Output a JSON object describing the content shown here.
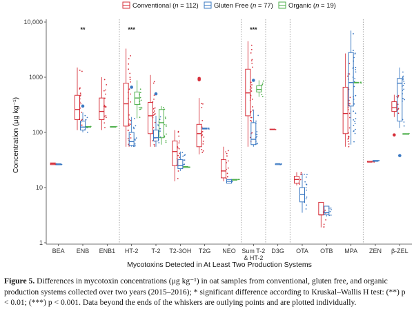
{
  "chart_data": {
    "type": "box",
    "xlabel": "Mycotoxins Detected in At Least Two Production Systems",
    "ylabel": "Concentration (μg kg⁻¹)",
    "yscale": "log10",
    "ylim": [
      1,
      10000
    ],
    "yticks": [
      1,
      10,
      100,
      1000,
      10000
    ],
    "ytick_labels": [
      "1",
      "10",
      "100",
      "1000",
      "10,000"
    ],
    "categories": [
      "BEA",
      "ENB",
      "ENB1",
      "HT-2",
      "T-2",
      "T2-3OH",
      "T2G",
      "NEO",
      "Sum T-2 & HT-2",
      "D3G",
      "OTA",
      "OTB",
      "MPA",
      "ZEN",
      "β-ZEL"
    ],
    "category_labels": [
      [
        "BEA"
      ],
      [
        "ENB"
      ],
      [
        "ENB1"
      ],
      [
        "HT-2"
      ],
      [
        "T-2"
      ],
      [
        "T2-3OH"
      ],
      [
        "T2G"
      ],
      [
        "NEO"
      ],
      [
        "Sum T-2",
        "& HT-2"
      ],
      [
        "D3G"
      ],
      [
        "OTA"
      ],
      [
        "OTB"
      ],
      [
        "MPA"
      ],
      [
        "ZEN"
      ],
      [
        "β-ZEL"
      ]
    ],
    "group_separators_after": [
      "ENB1",
      "NEO",
      "Sum T-2 & HT-2",
      "D3G",
      "MPA"
    ],
    "significance": [
      {
        "category": "ENB",
        "label": "**"
      },
      {
        "category": "HT-2",
        "label": "***"
      },
      {
        "category": "Sum T-2 & HT-2",
        "label": "***"
      }
    ],
    "legend": {
      "placement": "top",
      "entries": [
        {
          "label": "Conventional",
          "n_label": "n",
          "n_value": "= 112)",
          "color": "#d62f3a"
        },
        {
          "label": "Gluten Free",
          "n_label": "n",
          "n_value": "= 77)",
          "color": "#3a78c2"
        },
        {
          "label": "Organic",
          "n_label": "n",
          "n_value": "= 19)",
          "color": "#4daf4a"
        }
      ]
    },
    "series": [
      {
        "name": "Conventional",
        "color": "#d62f3a",
        "boxes": [
          {
            "category": "BEA",
            "min": 26,
            "q1": 26,
            "median": 27,
            "q3": 28,
            "max": 28,
            "outliers": []
          },
          {
            "category": "ENB",
            "min": 110,
            "q1": 170,
            "median": 260,
            "q3": 470,
            "max": 1500,
            "outliers": []
          },
          {
            "category": "ENB1",
            "min": 110,
            "q1": 170,
            "median": 240,
            "q3": 420,
            "max": 1000,
            "outliers": []
          },
          {
            "category": "HT-2",
            "min": 55,
            "q1": 130,
            "median": 330,
            "q3": 780,
            "max": 3300,
            "outliers": []
          },
          {
            "category": "T-2",
            "min": 55,
            "q1": 95,
            "median": 200,
            "q3": 350,
            "max": 1100,
            "outliers": []
          },
          {
            "category": "T2-3OH",
            "min": 13,
            "q1": 25,
            "median": 45,
            "q3": 70,
            "max": 110,
            "outliers": []
          },
          {
            "category": "T2G",
            "min": 40,
            "q1": 55,
            "median": 95,
            "q3": 140,
            "max": 420,
            "outliers": [
              900,
              950
            ]
          },
          {
            "category": "NEO",
            "min": 13,
            "q1": 15,
            "median": 20,
            "q3": 32,
            "max": 55,
            "outliers": []
          },
          {
            "category": "Sum T-2 & HT-2",
            "min": 55,
            "q1": 200,
            "median": 520,
            "q3": 1400,
            "max": 4500,
            "outliers": []
          },
          {
            "category": "D3G",
            "min": 112,
            "q1": 112,
            "median": 113,
            "q3": 115,
            "max": 115,
            "outliers": []
          },
          {
            "category": "OTA",
            "min": 11,
            "q1": 12,
            "median": 14,
            "q3": 16,
            "max": 19,
            "outliers": []
          },
          {
            "category": "OTB",
            "min": 1.9,
            "q1": 3.2,
            "median": 3.2,
            "q3": 5.4,
            "max": 5.4,
            "outliers": []
          },
          {
            "category": "MPA",
            "min": 55,
            "q1": 95,
            "median": 220,
            "q3": 660,
            "max": 2700,
            "outliers": []
          },
          {
            "category": "ZEN",
            "min": 29,
            "q1": 29,
            "median": 29,
            "q3": 30,
            "max": 30,
            "outliers": []
          },
          {
            "category": "β-ZEL",
            "min": 190,
            "q1": 240,
            "median": 280,
            "q3": 360,
            "max": 480,
            "outliers": [
              90
            ]
          }
        ]
      },
      {
        "name": "Gluten Free",
        "color": "#3a78c2",
        "boxes": [
          {
            "category": "BEA",
            "min": 26,
            "q1": 26,
            "median": 26,
            "q3": 27,
            "max": 27,
            "outliers": []
          },
          {
            "category": "ENB",
            "min": 100,
            "q1": 110,
            "median": 125,
            "q3": 160,
            "max": 230,
            "outliers": [
              300
            ]
          },
          {
            "category": "HT-2",
            "min": 55,
            "q1": 58,
            "median": 68,
            "q3": 100,
            "max": 190,
            "outliers": [
              660
            ]
          },
          {
            "category": "T-2",
            "min": 55,
            "q1": 70,
            "median": 80,
            "q3": 110,
            "max": 200,
            "outliers": [
              500
            ]
          },
          {
            "category": "T2-3OH",
            "min": 20,
            "q1": 22,
            "median": 25,
            "q3": 32,
            "max": 45,
            "outliers": []
          },
          {
            "category": "T2G",
            "min": 115,
            "q1": 115,
            "median": 118,
            "q3": 120,
            "max": 120,
            "outliers": []
          },
          {
            "category": "NEO",
            "min": 12,
            "q1": 12,
            "median": 13,
            "q3": 14,
            "max": 14,
            "outliers": []
          },
          {
            "category": "Sum T-2 & HT-2",
            "min": 55,
            "q1": 60,
            "median": 75,
            "q3": 150,
            "max": 260,
            "outliers": [
              880
            ]
          },
          {
            "category": "D3G",
            "min": 26,
            "q1": 26,
            "median": 27,
            "q3": 27,
            "max": 27,
            "outliers": []
          },
          {
            "category": "OTA",
            "min": 3.5,
            "q1": 5.5,
            "median": 7.5,
            "q3": 10,
            "max": 18,
            "outliers": []
          },
          {
            "category": "OTB",
            "min": 3,
            "q1": 3.2,
            "median": 3.5,
            "q3": 4.6,
            "max": 4.6,
            "outliers": []
          },
          {
            "category": "MPA",
            "min": 60,
            "q1": 300,
            "median": 800,
            "q3": 2800,
            "max": 7000,
            "outliers": []
          },
          {
            "category": "ZEN",
            "min": 30,
            "q1": 30,
            "median": 30,
            "q3": 31,
            "max": 31,
            "outliers": []
          },
          {
            "category": "β-ZEL",
            "min": 120,
            "q1": 160,
            "median": 780,
            "q3": 950,
            "max": 1500,
            "outliers": [
              38
            ]
          }
        ]
      },
      {
        "name": "Organic",
        "color": "#4daf4a",
        "boxes": [
          {
            "category": "ENB",
            "min": 125,
            "q1": 125,
            "median": 126,
            "q3": 128,
            "max": 128,
            "outliers": []
          },
          {
            "category": "ENB1",
            "min": 125,
            "q1": 125,
            "median": 126,
            "q3": 128,
            "max": 128,
            "outliers": []
          },
          {
            "category": "HT-2",
            "min": 180,
            "q1": 320,
            "median": 420,
            "q3": 540,
            "max": 880,
            "outliers": []
          },
          {
            "category": "T-2",
            "min": 60,
            "q1": 80,
            "median": 150,
            "q3": 260,
            "max": 300,
            "outliers": []
          },
          {
            "category": "T2-3OH",
            "min": 23,
            "q1": 23,
            "median": 24,
            "q3": 24,
            "max": 24,
            "outliers": []
          },
          {
            "category": "NEO",
            "min": 14,
            "q1": 14,
            "median": 14,
            "q3": 14,
            "max": 14,
            "outliers": []
          },
          {
            "category": "Sum T-2 & HT-2",
            "min": 440,
            "q1": 540,
            "median": 600,
            "q3": 700,
            "max": 880,
            "outliers": []
          },
          {
            "category": "MPA",
            "min": 780,
            "q1": 790,
            "median": 800,
            "q3": 810,
            "max": 820,
            "outliers": []
          },
          {
            "category": "β-ZEL",
            "min": 92,
            "q1": 93,
            "median": 94,
            "q3": 95,
            "max": 96,
            "outliers": []
          }
        ]
      }
    ]
  },
  "caption": {
    "label": "Figure 5.",
    "text": " Differences in mycotoxin concentrations (μg kg⁻¹) in oat samples from conventional, gluten free, and organic production systems collected over two years (2015–2016); * significant difference according to Kruskal–Wallis H test: (**) p < 0.01; (***) p < 0.001. Data beyond the ends of the whiskers are outlying points and are plotted individually."
  }
}
